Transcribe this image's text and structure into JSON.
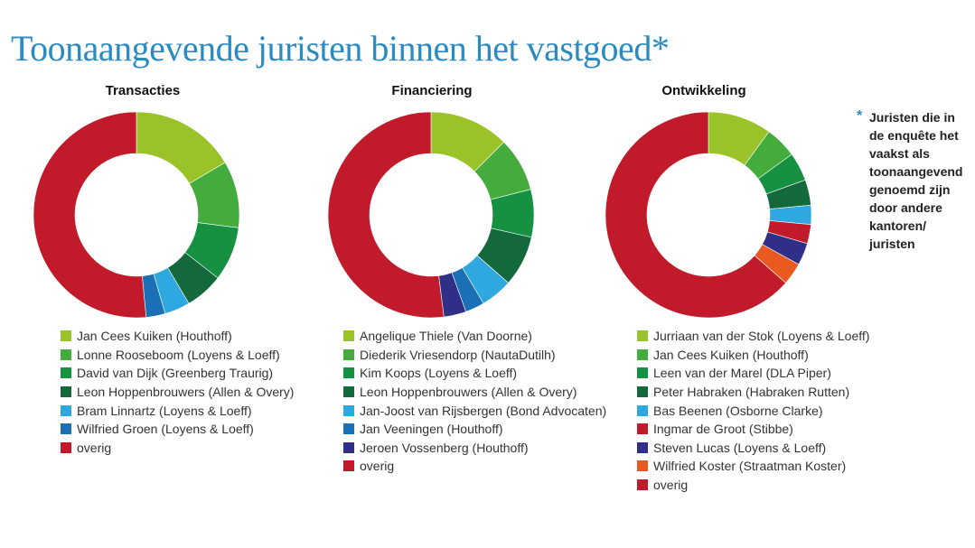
{
  "title": "Toonaangevende juristen binnen het vastgoed*",
  "note": {
    "marker": "*",
    "text": "Juristen die in de enquête het vaakst als toonaangevend genoemd zijn door andere kantoren/ juristen"
  },
  "colors": {
    "lime": "#9ac329",
    "green": "#44ac3c",
    "mid_green": "#159141",
    "dark_green": "#13693c",
    "sky": "#2fa8e0",
    "blue": "#1b6fb4",
    "navy": "#2f2f88",
    "orange": "#e85a20",
    "red": "#c11a2a"
  },
  "chart_data": [
    {
      "type": "pie",
      "title": "Transacties",
      "categories": [
        "Jan Cees Kuiken (Houthoff)",
        "Lonne Rooseboom (Loyens & Loeff)",
        "David van Dijk (Greenberg Traurig)",
        "Leon Hoppenbrouwers (Allen & Overy)",
        "Bram Linnartz (Loyens & Loeff)",
        "Wilfried Groen (Loyens & Loeff)",
        "overig"
      ],
      "values": [
        16.5,
        10.5,
        8.5,
        6,
        4,
        3,
        51.5
      ],
      "colors": [
        "#9ac329",
        "#44ac3c",
        "#159141",
        "#13693c",
        "#2fa8e0",
        "#1b6fb4",
        "#c11a2a"
      ]
    },
    {
      "type": "pie",
      "title": "Financiering",
      "categories": [
        "Angelique Thiele (Van Doorne)",
        "Diederik Vriesendorp (NautaDutilh)",
        "Kim Koops (Loyens & Loeff)",
        "Leon Hoppenbrouwers (Allen & Overy)",
        "Jan-Joost van Rijsbergen (Bond Advocaten)",
        "Jan Veeningen (Houthoff)",
        "Jeroen Vossenberg (Houthoff)",
        "overig"
      ],
      "values": [
        12.5,
        8.5,
        7.5,
        8,
        5,
        3,
        3.5,
        52
      ],
      "colors": [
        "#9ac329",
        "#44ac3c",
        "#159141",
        "#13693c",
        "#2fa8e0",
        "#1b6fb4",
        "#2f2f88",
        "#c11a2a"
      ]
    },
    {
      "type": "pie",
      "title": "Ontwikkeling",
      "categories": [
        "Jurriaan van der Stok (Loyens & Loeff)",
        "Jan Cees Kuiken (Houthoff)",
        "Leen van der Marel (DLA Piper)",
        "Peter Habraken (Habraken Rutten)",
        "Bas Beenen (Osborne Clarke)",
        "Ingmar de Groot (Stibbe)",
        "Steven Lucas (Loyens & Loeff)",
        "Wilfried Koster (Straatman Koster)",
        "overig"
      ],
      "values": [
        10,
        5,
        4.5,
        4,
        3,
        3,
        3.5,
        3.5,
        63.5
      ],
      "colors": [
        "#9ac329",
        "#44ac3c",
        "#159141",
        "#13693c",
        "#2fa8e0",
        "#c11a2a",
        "#2f2f88",
        "#e85a20",
        "#c11a2a"
      ]
    }
  ]
}
